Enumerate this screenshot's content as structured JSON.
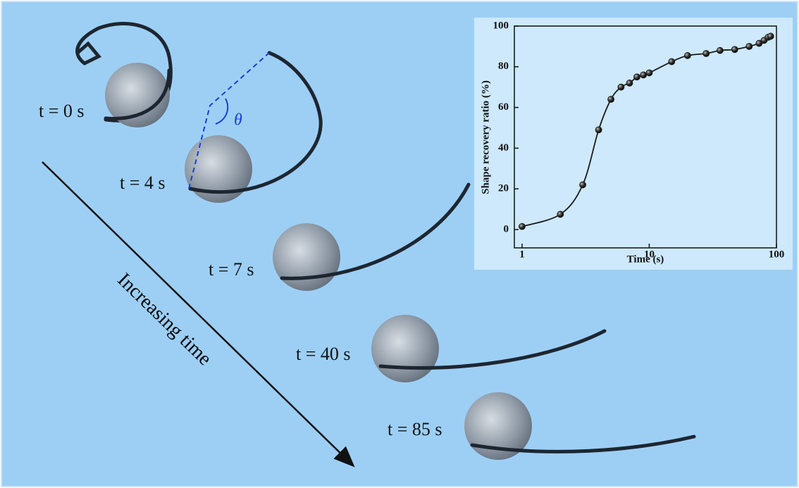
{
  "chart_data": {
    "type": "scatter",
    "xlabel": "Time (s)",
    "ylabel": "Shape recovery ratio (%)",
    "xscale": "log",
    "x": [
      1,
      2,
      3,
      4,
      5,
      6,
      7,
      8,
      9,
      10,
      15,
      20,
      28,
      36,
      47,
      61,
      73,
      80,
      86,
      90
    ],
    "series": [
      {
        "color": "#1a1a1a",
        "values": [
          1.5,
          7.5,
          22,
          49,
          64,
          70,
          72,
          75,
          76,
          77,
          82.5,
          85.5,
          86.5,
          88,
          88.5,
          90,
          91.5,
          93,
          94.5,
          95
        ]
      }
    ],
    "xlim": [
      0.87,
      100
    ],
    "ylim": [
      -9,
      100
    ],
    "xticks": [
      1,
      10,
      100
    ],
    "yticks": [
      0,
      20,
      40,
      60,
      80,
      100
    ]
  },
  "annotations": {
    "times": [
      "t = 0 s",
      "t = 4 s",
      "t = 7 s",
      "t = 40 s",
      "t = 85 s"
    ],
    "arrow": "Increasing time",
    "angle": "θ"
  }
}
